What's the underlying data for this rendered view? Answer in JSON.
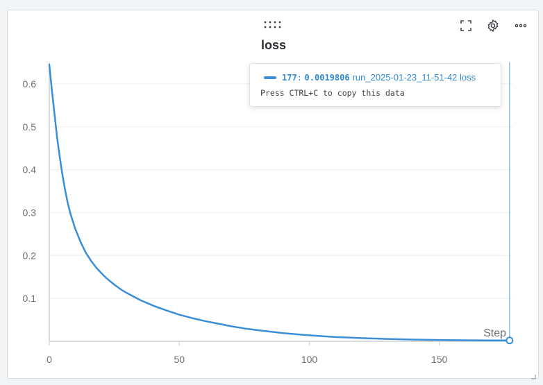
{
  "panel": {
    "title": "loss",
    "icons": [
      "drag-handle-icon",
      "fullscreen-icon",
      "gear-icon",
      "more-options-icon"
    ]
  },
  "tooltip": {
    "step": "177",
    "colon": ":",
    "value": "0.0019806",
    "run_label": "run_2025-01-23_11-51-42 loss",
    "hint": "Press CTRL+C to copy this data"
  },
  "colors": {
    "line": "#3a8ed8",
    "grid": "#eceef0",
    "axis": "#d7dadd",
    "cursor": "#59a9e6"
  },
  "chart_data": {
    "type": "line",
    "title": "loss",
    "xlabel": "Step",
    "ylabel": "",
    "xlim": [
      0,
      178
    ],
    "ylim": [
      0,
      0.65
    ],
    "xticks": [
      0,
      50,
      100,
      150
    ],
    "yticks": [
      0.1,
      0.2,
      0.3,
      0.4,
      0.5,
      0.6
    ],
    "grid": true,
    "hover_step": 177,
    "series": [
      {
        "name": "run_2025-01-23_11-51-42 loss",
        "x": [
          0,
          1,
          2,
          3,
          4,
          5,
          6,
          7,
          8,
          10,
          12,
          14,
          16,
          18,
          20,
          22,
          25,
          28,
          30,
          35,
          40,
          45,
          50,
          55,
          60,
          65,
          70,
          75,
          80,
          90,
          100,
          110,
          120,
          130,
          140,
          150,
          160,
          170,
          177
        ],
        "y": [
          0.645,
          0.585,
          0.53,
          0.475,
          0.43,
          0.39,
          0.355,
          0.325,
          0.3,
          0.262,
          0.232,
          0.207,
          0.188,
          0.172,
          0.159,
          0.147,
          0.132,
          0.119,
          0.112,
          0.096,
          0.083,
          0.072,
          0.062,
          0.054,
          0.047,
          0.041,
          0.035,
          0.03,
          0.026,
          0.019,
          0.014,
          0.01,
          0.0075,
          0.0055,
          0.004,
          0.003,
          0.0025,
          0.0021,
          0.0019806
        ]
      }
    ]
  }
}
